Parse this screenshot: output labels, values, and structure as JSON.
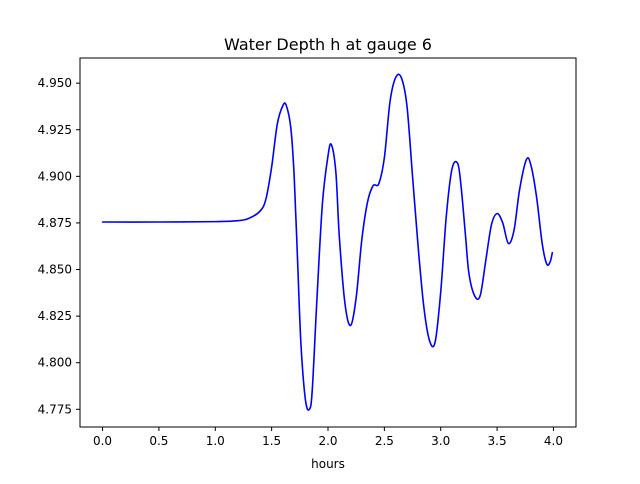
{
  "chart_data": {
    "type": "line",
    "title": "Water Depth h at gauge 6",
    "xlabel": "hours",
    "ylabel": "",
    "xlim": [
      -0.2,
      4.2
    ],
    "ylim": [
      4.7655,
      4.9635
    ],
    "x_ticks": [
      0.0,
      0.5,
      1.0,
      1.5,
      2.0,
      2.5,
      3.0,
      3.5,
      4.0
    ],
    "x_tick_labels": [
      "0.0",
      "0.5",
      "1.0",
      "1.5",
      "2.0",
      "2.5",
      "3.0",
      "3.5",
      "4.0"
    ],
    "y_ticks": [
      4.775,
      4.8,
      4.825,
      4.85,
      4.875,
      4.9,
      4.925,
      4.95
    ],
    "y_tick_labels": [
      "4.775",
      "4.800",
      "4.825",
      "4.850",
      "4.875",
      "4.900",
      "4.925",
      "4.950"
    ],
    "grid": false,
    "series": [
      {
        "color": "#0000ff",
        "x": [
          0.0,
          0.5,
          1.0,
          1.2,
          1.3,
          1.4,
          1.45,
          1.5,
          1.55,
          1.6,
          1.63,
          1.67,
          1.7,
          1.73,
          1.76,
          1.8,
          1.835,
          1.86,
          1.9,
          1.95,
          2.0,
          2.03,
          2.07,
          2.1,
          2.15,
          2.2,
          2.25,
          2.3,
          2.35,
          2.4,
          2.45,
          2.5,
          2.55,
          2.6,
          2.65,
          2.7,
          2.75,
          2.8,
          2.85,
          2.9,
          2.95,
          3.0,
          3.05,
          3.1,
          3.15,
          3.18,
          3.22,
          3.25,
          3.3,
          3.35,
          3.4,
          3.45,
          3.5,
          3.55,
          3.6,
          3.65,
          3.7,
          3.76,
          3.8,
          3.85,
          3.9,
          3.94,
          3.97,
          3.99
        ],
        "values": [
          4.8755,
          4.8755,
          4.8757,
          4.8762,
          4.8775,
          4.8815,
          4.888,
          4.905,
          4.928,
          4.938,
          4.938,
          4.926,
          4.9,
          4.855,
          4.81,
          4.78,
          4.775,
          4.785,
          4.832,
          4.885,
          4.911,
          4.917,
          4.902,
          4.868,
          4.832,
          4.82,
          4.835,
          4.866,
          4.886,
          4.895,
          4.896,
          4.91,
          4.94,
          4.953,
          4.953,
          4.938,
          4.9,
          4.862,
          4.83,
          4.812,
          4.811,
          4.838,
          4.879,
          4.904,
          4.907,
          4.895,
          4.868,
          4.848,
          4.836,
          4.836,
          4.855,
          4.874,
          4.88,
          4.875,
          4.864,
          4.871,
          4.893,
          4.909,
          4.906,
          4.889,
          4.864,
          4.853,
          4.854,
          4.859
        ]
      }
    ]
  }
}
